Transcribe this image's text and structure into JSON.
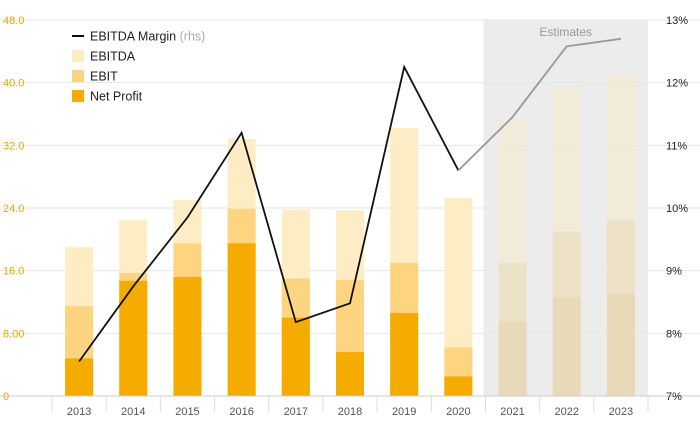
{
  "chart_data": {
    "type": "bar",
    "categories": [
      "2013",
      "2014",
      "2015",
      "2016",
      "2017",
      "2018",
      "2019",
      "2020",
      "2021",
      "2022",
      "2023"
    ],
    "series": [
      {
        "name": "EBITDA",
        "values": [
          19.0,
          22.5,
          25.0,
          32.8,
          23.8,
          23.7,
          34.2,
          25.3,
          35.5,
          39.5,
          41.0
        ]
      },
      {
        "name": "EBIT",
        "values": [
          11.5,
          15.7,
          19.5,
          23.9,
          15.0,
          14.8,
          17.0,
          6.2,
          17.0,
          21.0,
          22.4
        ]
      },
      {
        "name": "Net Profit",
        "values": [
          4.8,
          14.7,
          15.2,
          19.5,
          10.0,
          5.6,
          10.6,
          2.5,
          9.5,
          12.6,
          13.0
        ]
      }
    ],
    "line_series": {
      "name": "EBITDA Margin",
      "unit_label": "(rhs)",
      "axis": "right",
      "values": [
        7.55,
        8.75,
        9.85,
        11.2,
        8.18,
        8.48,
        12.25,
        10.6,
        11.45,
        12.58,
        12.7
      ]
    },
    "estimate_start_index": 8,
    "estimates_label": "Estimates",
    "left_axis": {
      "ylim": [
        0,
        48
      ],
      "ticks": [
        0,
        8,
        16,
        24,
        32,
        40,
        48
      ],
      "tick_labels": [
        "0",
        "8.00",
        "16.0",
        "24.0",
        "32.0",
        "40.0",
        "48.0"
      ]
    },
    "right_axis": {
      "ylim": [
        7,
        13
      ],
      "ticks": [
        7,
        8,
        9,
        10,
        11,
        12,
        13
      ],
      "tick_labels": [
        "7%",
        "8%",
        "9%",
        "10%",
        "11%",
        "12%",
        "13%"
      ]
    },
    "legend_position": "top-left",
    "grid": true,
    "colors": {
      "EBITDA": "#fdecc4",
      "EBIT": "#fdd581",
      "Net Profit": "#f6ab00",
      "estimate_bar": "#e8d9b8",
      "line": "#111111",
      "line_estimate": "#999999",
      "estimate_bg": "#ececec",
      "left_tick": "#e8a800",
      "right_tick": "#222222",
      "x_tick": "#555555",
      "grid": "#e6e6e6"
    },
    "title": "",
    "xlabel": "",
    "ylabel": ""
  }
}
